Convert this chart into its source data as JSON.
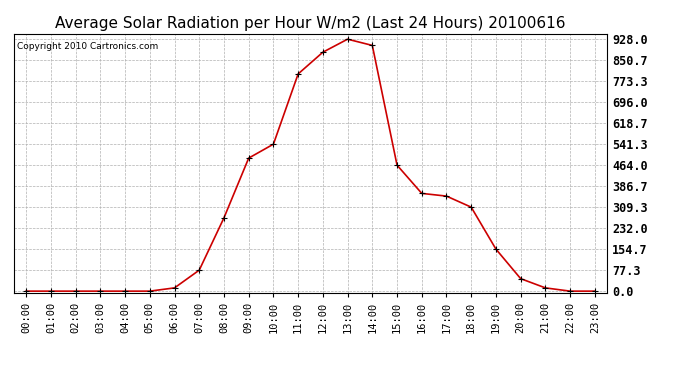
{
  "title": "Average Solar Radiation per Hour W/m2 (Last 24 Hours) 20100616",
  "copyright": "Copyright 2010 Cartronics.com",
  "hours": [
    "00:00",
    "01:00",
    "02:00",
    "03:00",
    "04:00",
    "05:00",
    "06:00",
    "07:00",
    "08:00",
    "09:00",
    "10:00",
    "11:00",
    "12:00",
    "13:00",
    "14:00",
    "15:00",
    "16:00",
    "17:00",
    "18:00",
    "19:00",
    "20:00",
    "21:00",
    "22:00",
    "23:00"
  ],
  "values": [
    0.0,
    0.0,
    0.0,
    0.0,
    0.0,
    0.0,
    12.0,
    77.3,
    270.0,
    490.0,
    541.3,
    800.0,
    880.0,
    928.0,
    905.0,
    464.0,
    360.0,
    350.0,
    309.3,
    154.7,
    46.0,
    12.0,
    0.0,
    0.0
  ],
  "line_color": "#cc0000",
  "marker": "+",
  "marker_color": "#000000",
  "bg_color": "#ffffff",
  "grid_color": "#b0b0b0",
  "yticks": [
    0.0,
    77.3,
    154.7,
    232.0,
    309.3,
    386.7,
    464.0,
    541.3,
    618.7,
    696.0,
    773.3,
    850.7,
    928.0
  ],
  "ylim": [
    0.0,
    928.0
  ],
  "title_fontsize": 11,
  "copyright_fontsize": 6.5,
  "tick_fontsize": 7.5,
  "ytick_fontsize": 8.5
}
